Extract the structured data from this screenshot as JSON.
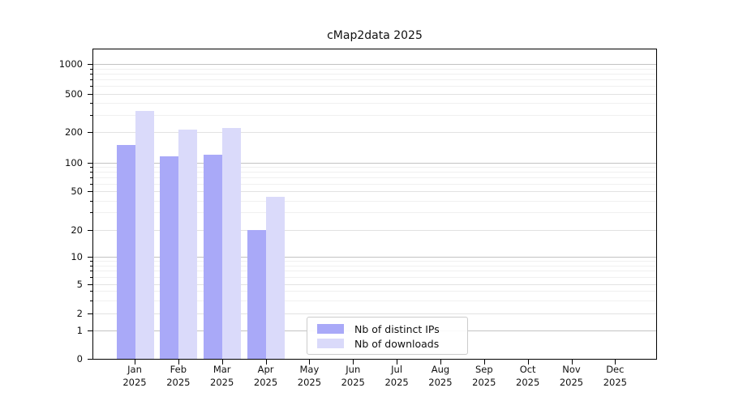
{
  "chart_data": {
    "type": "bar",
    "title": "cMap2data 2025",
    "categories": [
      "Jan",
      "Feb",
      "Mar",
      "Apr",
      "May",
      "Jun",
      "Jul",
      "Aug",
      "Sep",
      "Oct",
      "Nov",
      "Dec"
    ],
    "year_label": "2025",
    "series": [
      {
        "name": "Nb of distinct IPs",
        "color": "#a9a9f8",
        "values": [
          150,
          115,
          120,
          20,
          0,
          0,
          0,
          0,
          0,
          0,
          0,
          0
        ]
      },
      {
        "name": "Nb of downloads",
        "color": "#dadafa",
        "values": [
          330,
          210,
          220,
          44,
          0,
          0,
          0,
          0,
          0,
          0,
          0,
          0
        ]
      }
    ],
    "yscale": "symlog",
    "yticks": [
      0,
      1,
      2,
      5,
      10,
      20,
      50,
      100,
      200,
      500,
      1000
    ],
    "ylim": [
      0,
      1500
    ],
    "grid": true,
    "legend_position": "lower-center"
  },
  "colors": {
    "grid_major": "#c3c3c3",
    "grid_mid": "#e2e2e2",
    "grid_minor": "#f0f0f0",
    "axis": "#000000",
    "text": "#111111"
  }
}
